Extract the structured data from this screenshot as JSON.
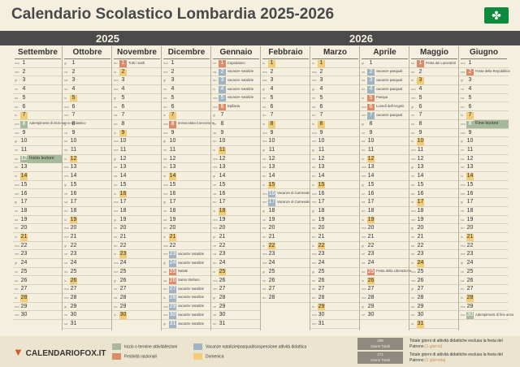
{
  "title": "Calendario Scolastico Lombardia 2025-2026",
  "years": [
    "2025",
    "2026"
  ],
  "colors": {
    "background": "#f4efdf",
    "year_bar": "#4b4b4b",
    "start_end": "#a6b99a",
    "holiday": "#d98b6a",
    "vacation": "#9fb3c2",
    "sunday": "#f3cd76"
  },
  "flag_icon": "lombardy-rose-icon",
  "months": [
    {
      "name": "Settembre",
      "days": 30,
      "first": 1,
      "marks": {
        "7": "w",
        "8": "s",
        "12": "s",
        "14": "w",
        "21": "w",
        "28": "w"
      },
      "notes": {
        "8": "Adempimenti di inizio anno scolastico"
      },
      "bars": {
        "12": "Inizio lezioni"
      }
    },
    {
      "name": "Ottobre",
      "days": 31,
      "first": 3,
      "marks": {
        "5": "w",
        "12": "w",
        "19": "w",
        "26": "w"
      },
      "notes": {},
      "bars": {}
    },
    {
      "name": "Novembre",
      "days": 30,
      "first": 6,
      "marks": {
        "1": "h",
        "2": "w",
        "9": "w",
        "16": "w",
        "23": "w",
        "30": "w"
      },
      "notes": {
        "1": "Tutti i santi"
      },
      "bars": {}
    },
    {
      "name": "Dicembre",
      "days": 31,
      "first": 1,
      "marks": {
        "7": "w",
        "8": "h",
        "14": "w",
        "21": "w",
        "23": "v",
        "24": "v",
        "25": "h",
        "26": "h",
        "27": "v",
        "28": "v",
        "29": "v",
        "30": "v",
        "31": "v"
      },
      "notes": {
        "8": "Immacolata Concezione",
        "23": "vacanze natalizie",
        "24": "vacanze natalizie",
        "25": "Natale",
        "26": "Santo Stefano",
        "27": "vacanze natalizie",
        "28": "vacanze natalizie",
        "29": "vacanze natalizie",
        "30": "vacanze natalizie",
        "31": "vacanze natalizie"
      },
      "bars": {}
    },
    {
      "name": "Gennaio",
      "days": 31,
      "first": 4,
      "marks": {
        "1": "h",
        "2": "v",
        "3": "v",
        "4": "v",
        "5": "v",
        "6": "h",
        "11": "w",
        "18": "w",
        "25": "w"
      },
      "notes": {
        "1": "Capodanno",
        "2": "vacanze natalizie",
        "3": "vacanze natalizie",
        "4": "vacanze natalizie",
        "5": "vacanze natalizie",
        "6": "Epifania"
      },
      "bars": {}
    },
    {
      "name": "Febbraio",
      "days": 28,
      "first": 0,
      "marks": {
        "1": "w",
        "8": "w",
        "15": "w",
        "16": "v",
        "17": "v",
        "22": "w"
      },
      "notes": {
        "16": "Vacanze di Carnevale",
        "17": "Vacanze di Carnevale"
      },
      "bars": {}
    },
    {
      "name": "Marzo",
      "days": 31,
      "first": 0,
      "marks": {
        "1": "w",
        "8": "w",
        "15": "w",
        "22": "w",
        "29": "w"
      },
      "notes": {},
      "bars": {}
    },
    {
      "name": "Aprile",
      "days": 30,
      "first": 3,
      "marks": {
        "2": "v",
        "3": "v",
        "4": "v",
        "5": "h",
        "6": "h",
        "7": "v",
        "12": "w",
        "19": "w",
        "25": "h",
        "26": "w"
      },
      "notes": {
        "2": "vacanze pasquali",
        "3": "vacanze pasquali",
        "4": "vacanze pasquali",
        "5": "Pasqua",
        "6": "Lunedì dell'Angelo",
        "7": "vacanze pasquali",
        "25": "Festa della Liberazione"
      },
      "bars": {}
    },
    {
      "name": "Maggio",
      "days": 31,
      "first": 5,
      "marks": {
        "1": "h",
        "3": "w",
        "10": "w",
        "17": "w",
        "24": "w",
        "31": "w"
      },
      "notes": {
        "1": "Festa dei Lavoratori"
      },
      "bars": {}
    },
    {
      "name": "Giugno",
      "days": 30,
      "first": 1,
      "marks": {
        "2": "h",
        "7": "w",
        "8": "s",
        "14": "w",
        "21": "w",
        "28": "w",
        "30": "s"
      },
      "notes": {
        "2": "Festa della Repubblica",
        "30": "Adempimenti di fine anno"
      },
      "bars": {
        "8": "Fine lezioni"
      }
    }
  ],
  "weekdays": [
    "lu",
    "ma",
    "me",
    "gi",
    "ve",
    "sa",
    "do"
  ],
  "footer": {
    "logo": "CALENDARIOFOX.IT",
    "legend": [
      {
        "label": "Inizio o termine attività/lezioni",
        "color": "#a6b99a"
      },
      {
        "label": "Vacanze natalizie/pasquali/sospensione attività didattica",
        "color": "#9fb3c2"
      },
      {
        "label": "Festività nazionali",
        "color": "#d98b6a"
      },
      {
        "label": "Domenica",
        "color": "#f3cd76"
      }
    ],
    "totals": [
      {
        "box_count": "208",
        "box_label": "Giorni Totali",
        "text": "Totale giorni di attività didattiche esclusa la festa del Patrono",
        "accent": "(1 giorno)"
      },
      {
        "box_count": "171",
        "box_label": "Giorni Totali",
        "text": "Totale giorni di attività didattiche esclusa la festa del Patrono",
        "accent": "(1 giornata)"
      }
    ]
  }
}
